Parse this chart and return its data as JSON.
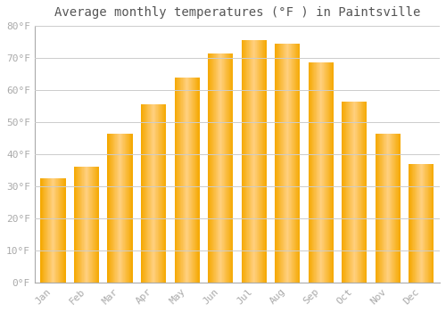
{
  "title": "Average monthly temperatures (°F ) in Paintsville",
  "months": [
    "Jan",
    "Feb",
    "Mar",
    "Apr",
    "May",
    "Jun",
    "Jul",
    "Aug",
    "Sep",
    "Oct",
    "Nov",
    "Dec"
  ],
  "values": [
    32.5,
    36.0,
    46.5,
    55.5,
    64.0,
    71.5,
    75.5,
    74.5,
    68.5,
    56.5,
    46.5,
    37.0
  ],
  "bar_color_center": "#FFD080",
  "bar_color_edge": "#F5A800",
  "background_color": "#FFFFFF",
  "grid_color": "#CCCCCC",
  "tick_label_color": "#AAAAAA",
  "title_color": "#555555",
  "ylim": [
    0,
    80
  ],
  "yticks": [
    0,
    10,
    20,
    30,
    40,
    50,
    60,
    70,
    80
  ],
  "ytick_labels": [
    "0°F",
    "10°F",
    "20°F",
    "30°F",
    "40°F",
    "50°F",
    "60°F",
    "70°F",
    "80°F"
  ],
  "title_fontsize": 10,
  "tick_fontsize": 8,
  "font_family": "monospace"
}
